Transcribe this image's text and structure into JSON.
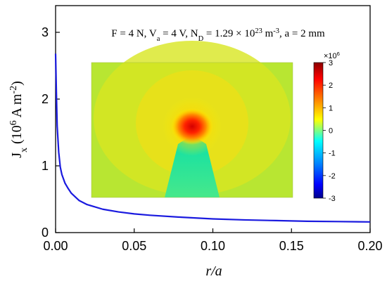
{
  "chart_data": {
    "type": "line",
    "xlabel": "r/a",
    "ylabel": "J_x (10^6 A m^-2)",
    "xlim": [
      0,
      0.2
    ],
    "ylim": [
      0,
      3.4
    ],
    "xticks": [
      "0.00",
      "0.05",
      "0.10",
      "0.15",
      "0.20"
    ],
    "yticks": [
      "0",
      "1",
      "2",
      "3"
    ],
    "annotation": "F = 4 N, V_a = 4 V, N_D = 1.29 × 10^23 m^-3, a = 2 mm",
    "series": [
      {
        "color": "#1a1adf",
        "x": [
          0.0,
          0.0005,
          0.001,
          0.002,
          0.003,
          0.004,
          0.006,
          0.008,
          0.01,
          0.015,
          0.02,
          0.03,
          0.04,
          0.05,
          0.06,
          0.08,
          0.1,
          0.12,
          0.14,
          0.16,
          0.18,
          0.2
        ],
        "y": [
          2.68,
          2.1,
          1.6,
          1.2,
          0.98,
          0.87,
          0.74,
          0.66,
          0.59,
          0.48,
          0.42,
          0.35,
          0.31,
          0.28,
          0.26,
          0.23,
          0.205,
          0.19,
          0.18,
          0.17,
          0.165,
          0.16
        ]
      }
    ],
    "inset": {
      "type": "heatmap",
      "colorbar_multiplier": "×10^6",
      "colorbar_range": [
        -3,
        3
      ],
      "colorbar_ticks": [
        "3",
        "2",
        "1",
        "0",
        "-1",
        "-2",
        "-3"
      ]
    }
  }
}
